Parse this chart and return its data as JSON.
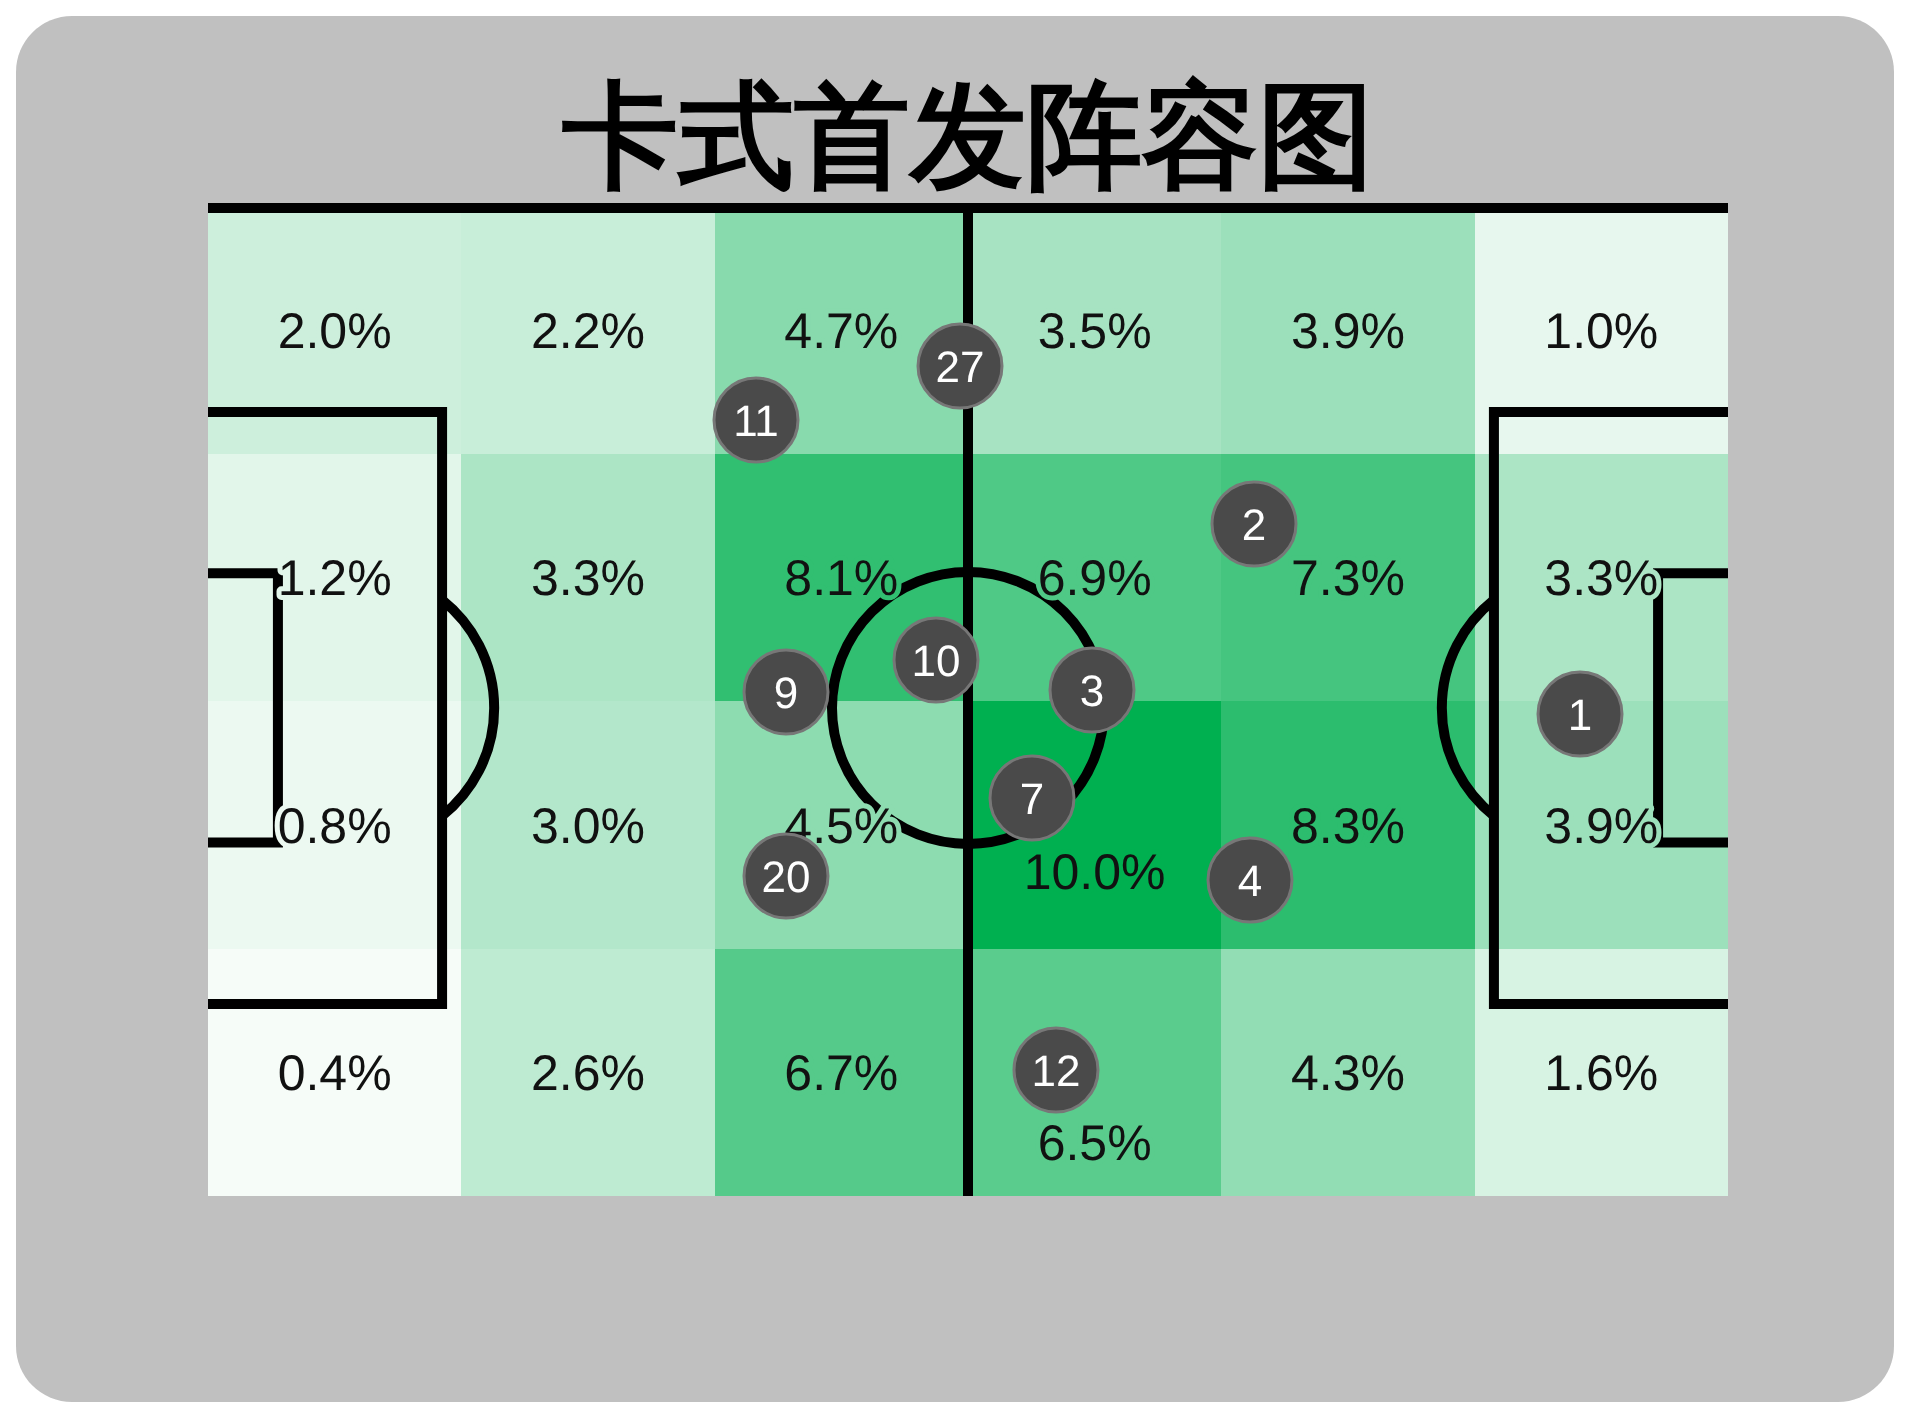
{
  "chart_data": {
    "type": "heatmap",
    "title": "卡式首发阵容图",
    "categories": [
      null,
      null,
      null,
      null,
      null,
      null
    ],
    "y_categories": [
      null,
      null,
      null,
      null
    ],
    "cells": [
      [
        2.0,
        2.2,
        4.7,
        3.5,
        3.9,
        1.0
      ],
      [
        1.2,
        3.3,
        8.1,
        6.9,
        7.3,
        3.3
      ],
      [
        0.8,
        3.0,
        4.5,
        10.0,
        8.3,
        3.9
      ],
      [
        0.4,
        2.6,
        6.7,
        6.5,
        4.3,
        1.6
      ]
    ],
    "cell_labels": [
      [
        "2.0%",
        "2.2%",
        "4.7%",
        "3.5%",
        "3.9%",
        "1.0%"
      ],
      [
        "1.2%",
        "3.3%",
        "8.1%",
        "6.9%",
        "7.3%",
        "3.3%"
      ],
      [
        "0.8%",
        "3.0%",
        "4.5%",
        "10.0%",
        "8.3%",
        "3.9%"
      ],
      [
        "0.4%",
        "2.6%",
        "6.7%",
        "6.5%",
        "4.3%",
        "1.6%"
      ]
    ],
    "annotations": [
      "27",
      "11",
      "2",
      "10",
      "9",
      "3",
      "1",
      "7",
      "20",
      "4",
      "12"
    ]
  }
}
